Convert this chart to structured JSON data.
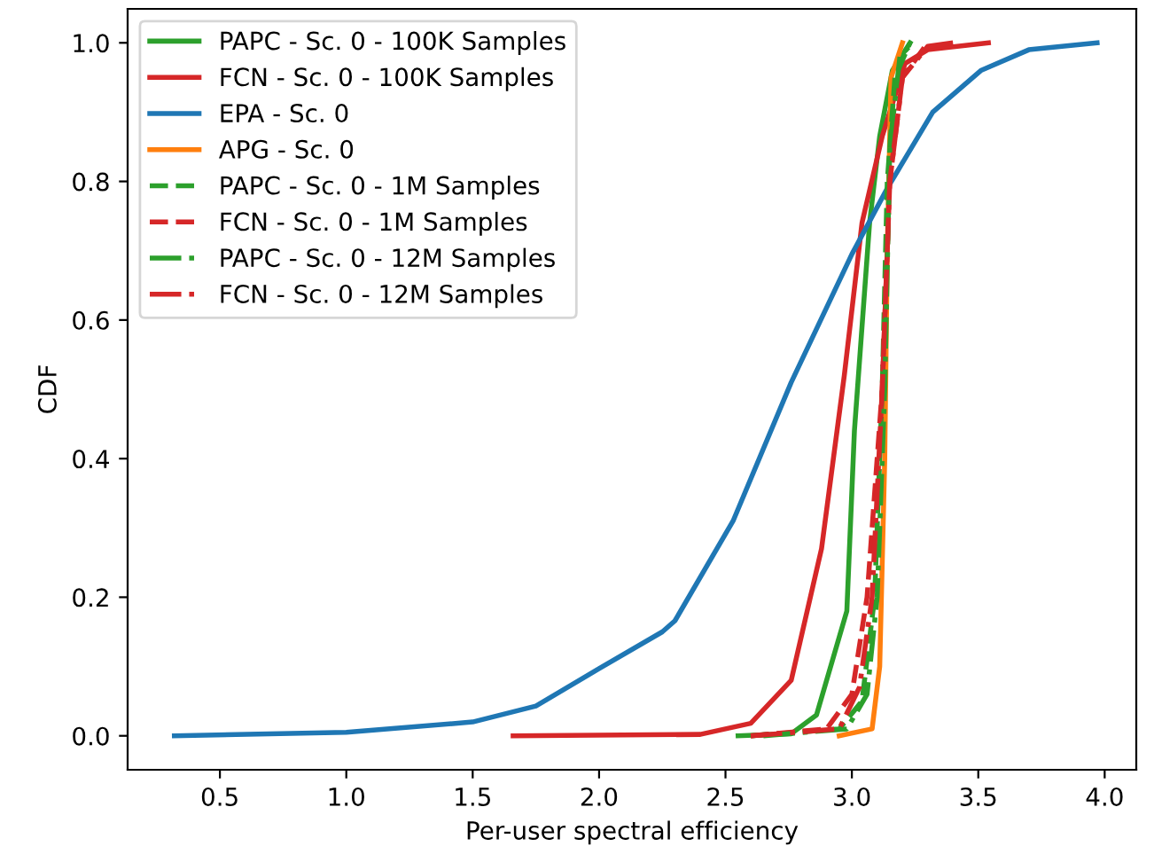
{
  "chart_data": {
    "type": "line",
    "xlabel": "Per-user spectral efficiency",
    "ylabel": "CDF",
    "xlim": [
      0.135,
      4.125
    ],
    "ylim": [
      -0.049,
      1.049
    ],
    "xticks": [
      {
        "value": 0.5,
        "label": "0.5"
      },
      {
        "value": 1.0,
        "label": "1.0"
      },
      {
        "value": 1.5,
        "label": "1.5"
      },
      {
        "value": 2.0,
        "label": "2.0"
      },
      {
        "value": 2.5,
        "label": "2.5"
      },
      {
        "value": 3.0,
        "label": "3.0"
      },
      {
        "value": 3.5,
        "label": "3.5"
      },
      {
        "value": 4.0,
        "label": "4.0"
      }
    ],
    "yticks": [
      {
        "value": 0.0,
        "label": "0.0"
      },
      {
        "value": 0.2,
        "label": "0.2"
      },
      {
        "value": 0.4,
        "label": "0.4"
      },
      {
        "value": 0.6,
        "label": "0.6"
      },
      {
        "value": 0.8,
        "label": "0.8"
      },
      {
        "value": 1.0,
        "label": "1.0"
      }
    ],
    "grid": false,
    "legend": "top left",
    "marker": "none",
    "series": [
      {
        "name": "PAPC - Sc. 0 - 100K Samples",
        "color": "#2ca02c",
        "line_style": "solid",
        "x": [
          2.55,
          2.76,
          2.86,
          2.98,
          3.01,
          3.07,
          3.11,
          3.16,
          3.23
        ],
        "values": [
          0,
          0.003,
          0.03,
          0.18,
          0.44,
          0.74,
          0.865,
          0.96,
          1.0
        ]
      },
      {
        "name": "FCN - Sc. 0 - 100K Samples",
        "color": "#d62728",
        "line_style": "solid",
        "x": [
          1.66,
          2.4,
          2.6,
          2.76,
          2.88,
          2.97,
          3.04,
          3.12,
          3.21,
          3.3,
          3.54
        ],
        "values": [
          0,
          0.002,
          0.018,
          0.08,
          0.27,
          0.52,
          0.74,
          0.865,
          0.97,
          0.99,
          1.0
        ]
      },
      {
        "name": "EPA - Sc. 0",
        "color": "#1f77b4",
        "line_style": "solid",
        "x": [
          0.32,
          1.0,
          1.5,
          1.75,
          2.0,
          2.25,
          2.3,
          2.53,
          2.76,
          3.0,
          3.14,
          3.32,
          3.51,
          3.7,
          3.97
        ],
        "values": [
          0,
          0.005,
          0.02,
          0.043,
          0.097,
          0.15,
          0.166,
          0.31,
          0.51,
          0.695,
          0.79,
          0.9,
          0.96,
          0.99,
          1.0
        ]
      },
      {
        "name": "APG - Sc. 0",
        "color": "#ff7f0e",
        "line_style": "solid",
        "x": [
          2.95,
          3.08,
          3.11,
          3.13,
          3.14,
          3.155,
          3.2
        ],
        "values": [
          0,
          0.01,
          0.1,
          0.4,
          0.7,
          0.95,
          1.0
        ]
      },
      {
        "name": "PAPC - Sc. 0 - 1M Samples",
        "color": "#2ca02c",
        "line_style": "dashed",
        "x": [
          2.6,
          2.95,
          3.04,
          3.09,
          3.12,
          3.14,
          3.17,
          3.23
        ],
        "values": [
          0,
          0.01,
          0.05,
          0.2,
          0.5,
          0.8,
          0.95,
          1.0
        ]
      },
      {
        "name": "FCN - Sc. 0 - 1M Samples",
        "color": "#d62728",
        "line_style": "dashed",
        "x": [
          2.6,
          2.9,
          3.0,
          3.06,
          3.12,
          3.15,
          3.2,
          3.3
        ],
        "values": [
          0,
          0.01,
          0.06,
          0.2,
          0.5,
          0.8,
          0.95,
          1.0
        ]
      },
      {
        "name": "PAPC - Sc. 0 - 12M Samples",
        "color": "#2ca02c",
        "line_style": "dashdot",
        "x": [
          2.65,
          2.98,
          3.06,
          3.1,
          3.13,
          3.15,
          3.19,
          3.24
        ],
        "values": [
          0,
          0.01,
          0.06,
          0.2,
          0.5,
          0.85,
          0.98,
          1.0
        ]
      },
      {
        "name": "FCN - Sc. 0 - 12M Samples",
        "color": "#d62728",
        "line_style": "dashdot",
        "x": [
          2.6,
          2.95,
          3.03,
          3.08,
          3.12,
          3.15,
          3.2,
          3.3,
          3.4
        ],
        "values": [
          0,
          0.01,
          0.07,
          0.2,
          0.5,
          0.8,
          0.95,
          0.995,
          1.0
        ]
      }
    ]
  }
}
